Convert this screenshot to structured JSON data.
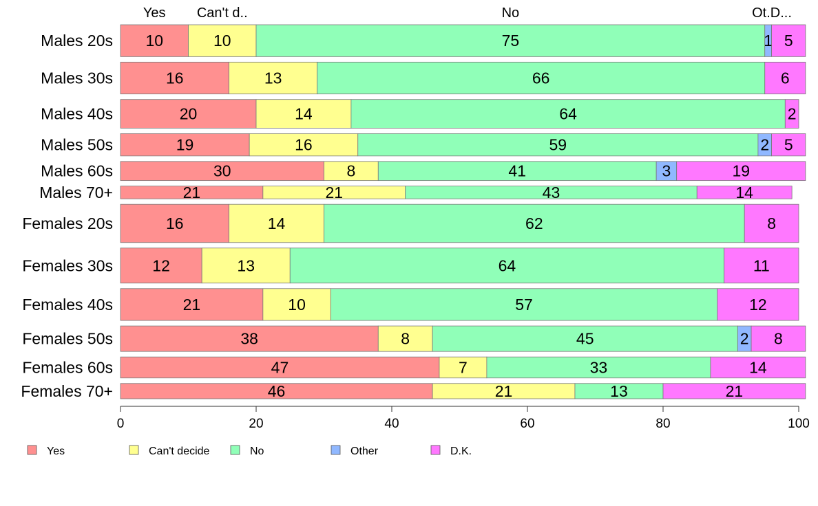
{
  "chart_data": {
    "type": "bar",
    "orientation": "horizontal",
    "stacked": true,
    "categories": [
      "Males 20s",
      "Males 30s",
      "Males 40s",
      "Males 50s",
      "Males 60s",
      "Males 70+",
      "Females 20s",
      "Females 30s",
      "Females 40s",
      "Females 50s",
      "Females 60s",
      "Females 70+"
    ],
    "series": [
      {
        "name": "Yes",
        "color": "#ff9090",
        "values": [
          10,
          16,
          20,
          19,
          30,
          21,
          16,
          12,
          21,
          38,
          47,
          46
        ]
      },
      {
        "name": "Can't decide",
        "color": "#ffff90",
        "values": [
          10,
          13,
          14,
          16,
          8,
          21,
          14,
          13,
          10,
          8,
          7,
          21
        ]
      },
      {
        "name": "No",
        "color": "#90ffb8",
        "values": [
          75,
          66,
          64,
          59,
          41,
          43,
          62,
          64,
          57,
          45,
          33,
          13
        ]
      },
      {
        "name": "Other",
        "color": "#90b8ff",
        "values": [
          1,
          0,
          0,
          2,
          3,
          0,
          0,
          0,
          0,
          2,
          0,
          0
        ]
      },
      {
        "name": "D.K.",
        "color": "#ff78ff",
        "values": [
          5,
          6,
          2,
          5,
          19,
          14,
          8,
          11,
          12,
          8,
          14,
          21
        ]
      }
    ],
    "relative_widths": [
      5,
      5,
      4.5,
      3.5,
      3,
      2,
      6,
      5.5,
      5,
      4,
      3.3,
      2.4
    ],
    "top_labels": [
      "Yes",
      "Can't d..",
      "No",
      "",
      "Ot.D..."
    ],
    "xlim": [
      0,
      100
    ],
    "xticks": [
      0,
      20,
      40,
      60,
      80,
      100
    ],
    "legend": {
      "placement": "bottom-left",
      "entries": [
        "Yes",
        "Can't decide",
        "No",
        "Other",
        "D.K."
      ]
    },
    "grid": false
  }
}
